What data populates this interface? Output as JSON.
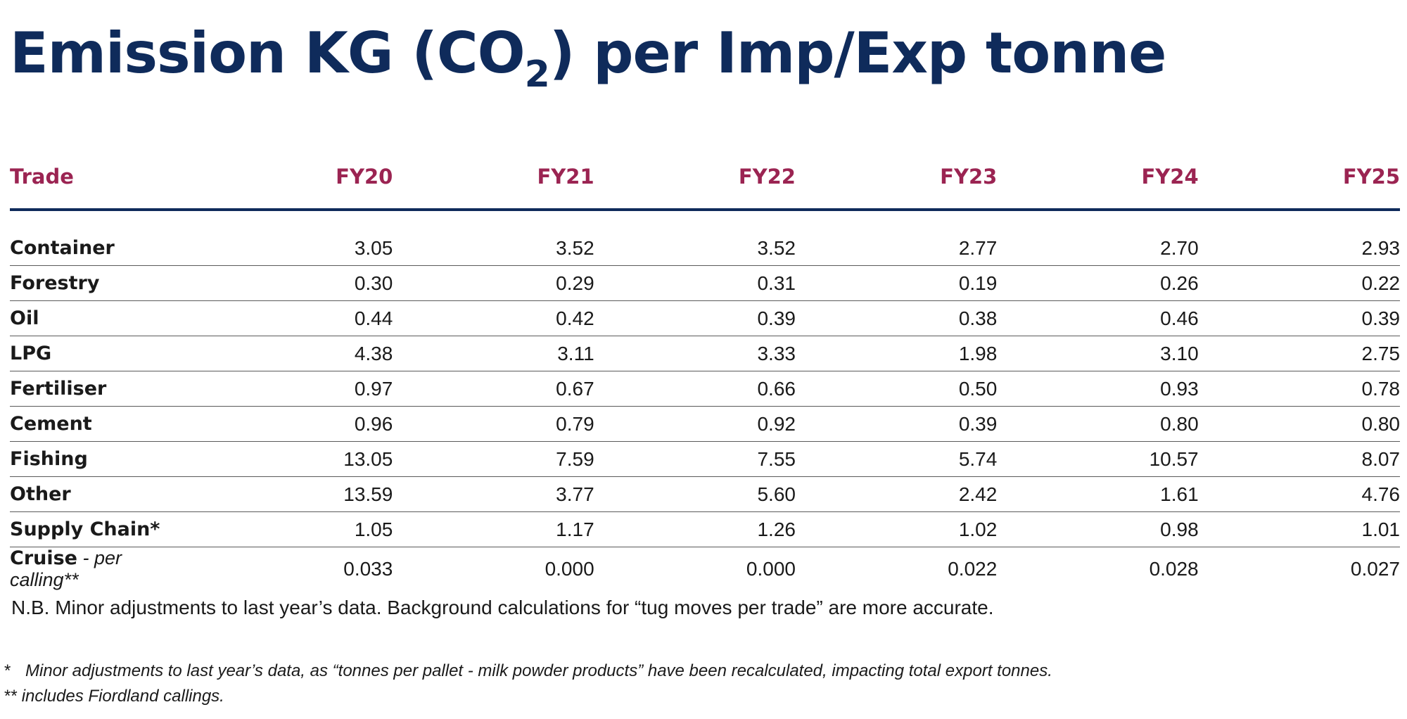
{
  "title": {
    "prefix": "Emission KG (CO",
    "subscript": "2",
    "suffix": ") per Imp/Exp tonne"
  },
  "table": {
    "headers": [
      "Trade",
      "FY20",
      "FY21",
      "FY22",
      "FY23",
      "FY24",
      "FY25"
    ],
    "rows": [
      {
        "trade": "Container",
        "note": "",
        "values": [
          "3.05",
          "3.52",
          "3.52",
          "2.77",
          "2.70",
          "2.93"
        ]
      },
      {
        "trade": "Forestry",
        "note": "",
        "values": [
          "0.30",
          "0.29",
          "0.31",
          "0.19",
          "0.26",
          "0.22"
        ]
      },
      {
        "trade": "Oil",
        "note": "",
        "values": [
          "0.44",
          "0.42",
          "0.39",
          "0.38",
          "0.46",
          "0.39"
        ]
      },
      {
        "trade": "LPG",
        "note": "",
        "values": [
          "4.38",
          "3.11",
          "3.33",
          "1.98",
          "3.10",
          "2.75"
        ]
      },
      {
        "trade": "Fertiliser",
        "note": "",
        "values": [
          "0.97",
          "0.67",
          "0.66",
          "0.50",
          "0.93",
          "0.78"
        ]
      },
      {
        "trade": "Cement",
        "note": "",
        "values": [
          "0.96",
          "0.79",
          "0.92",
          "0.39",
          "0.80",
          "0.80"
        ]
      },
      {
        "trade": "Fishing",
        "note": "",
        "values": [
          "13.05",
          "7.59",
          "7.55",
          "5.74",
          "10.57",
          "8.07"
        ]
      },
      {
        "trade": "Other",
        "note": "",
        "values": [
          "13.59",
          "3.77",
          "5.60",
          "2.42",
          "1.61",
          "4.76"
        ]
      },
      {
        "trade": "Supply Chain*",
        "note": "",
        "values": [
          "1.05",
          "1.17",
          "1.26",
          "1.02",
          "0.98",
          "1.01"
        ]
      },
      {
        "trade": "Cruise",
        "note": " - per calling**",
        "values": [
          "0.033",
          "0.000",
          "0.000",
          "0.022",
          "0.028",
          "0.027"
        ]
      }
    ]
  },
  "nb_note": "N.B. Minor adjustments to last year’s data. Background calculations for “tug moves per trade” are more accurate.",
  "footnotes": [
    {
      "marker": "*",
      "text": "Minor adjustments to last year’s data, as “tonnes per pallet - milk powder products” have been recalculated, impacting total export tonnes."
    },
    {
      "marker": "**",
      "text": "includes Fiordland callings."
    }
  ],
  "colors": {
    "title": "#0f2b5b",
    "header_text": "#9b2452",
    "header_rule": "#0f2b5b"
  }
}
